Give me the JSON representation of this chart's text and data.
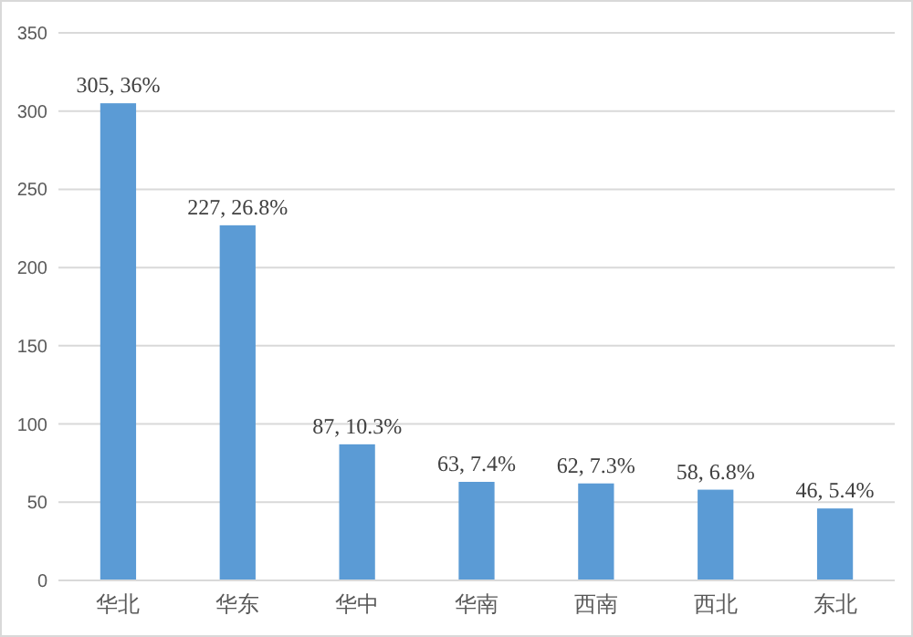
{
  "chart_data": {
    "type": "bar",
    "categories": [
      "华北",
      "华东",
      "华中",
      "华南",
      "西南",
      "西北",
      "东北"
    ],
    "values": [
      305,
      227,
      87,
      63,
      62,
      58,
      46
    ],
    "value_labels": [
      "305, 36%",
      "227, 26.8%",
      "87, 10.3%",
      "63, 7.4%",
      "62, 7.3%",
      "58, 6.8%",
      "46, 5.4%"
    ],
    "color": "#5b9bd5",
    "ylim": [
      0,
      350
    ],
    "yticks": [
      0,
      50,
      100,
      150,
      200,
      250,
      300,
      350
    ],
    "grid": "y"
  }
}
